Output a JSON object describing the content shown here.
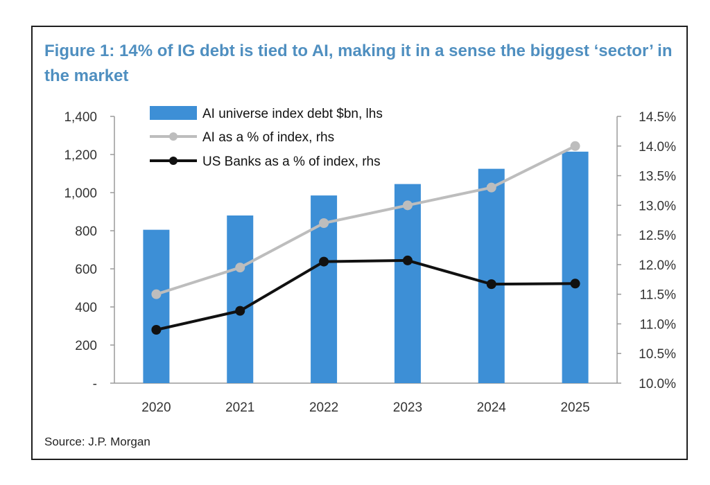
{
  "title": "Figure 1: 14% of IG debt is tied to AI, making it in a sense the biggest ‘sector’ in the market",
  "source": "Source: J.P. Morgan",
  "colors": {
    "bar": "#3d8fd6",
    "ai_line": "#bdbdbd",
    "banks_line": "#111111",
    "title": "#4f8fc0",
    "axis": "#9a9a9a",
    "tick_text": "#333333"
  },
  "chart_data": {
    "type": "bar+line",
    "categories": [
      "2020",
      "2021",
      "2022",
      "2023",
      "2024",
      "2025"
    ],
    "y_left": {
      "range": [
        0,
        1400
      ],
      "ticks": [
        0,
        200,
        400,
        600,
        800,
        1000,
        1200,
        1400
      ],
      "tick_labels": [
        "-",
        "200",
        "400",
        "600",
        "800",
        "1,000",
        "1,200",
        "1,400"
      ]
    },
    "y_right": {
      "range": [
        10.0,
        14.5
      ],
      "ticks": [
        10.0,
        10.5,
        11.0,
        11.5,
        12.0,
        12.5,
        13.0,
        13.5,
        14.0,
        14.5
      ],
      "tick_labels": [
        "10.0%",
        "10.5%",
        "11.0%",
        "11.5%",
        "12.0%",
        "12.5%",
        "13.0%",
        "13.5%",
        "14.0%",
        "14.5%"
      ]
    },
    "series": [
      {
        "name": "AI universe index debt $bn, lhs",
        "type": "bar",
        "axis": "left",
        "values": [
          805,
          880,
          985,
          1045,
          1125,
          1215
        ]
      },
      {
        "name": "AI as a % of index, rhs",
        "type": "line",
        "axis": "right",
        "values": [
          11.5,
          11.95,
          12.7,
          13.0,
          13.3,
          14.0
        ]
      },
      {
        "name": "US Banks as a % of index, rhs",
        "type": "line",
        "axis": "right",
        "values": [
          10.9,
          11.22,
          12.05,
          12.07,
          11.67,
          11.68
        ]
      }
    ],
    "legend_position": "top-left",
    "grid": false
  }
}
